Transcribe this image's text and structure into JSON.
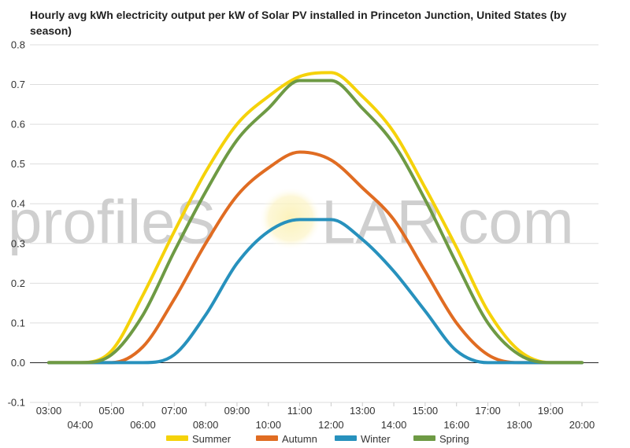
{
  "chart_data": {
    "type": "line",
    "title": "Hourly avg kWh electricity output per kW of Solar PV installed in Princeton Junction, United States (by season)",
    "xlabel": "",
    "ylabel": "",
    "ylim": [
      -0.1,
      0.8
    ],
    "yticks": [
      "-0.1",
      "0.0",
      "0.1",
      "0.2",
      "0.3",
      "0.4",
      "0.5",
      "0.6",
      "0.7",
      "0.8"
    ],
    "x": [
      "03:00",
      "04:00",
      "05:00",
      "06:00",
      "07:00",
      "08:00",
      "09:00",
      "10:00",
      "11:00",
      "12:00",
      "13:00",
      "14:00",
      "15:00",
      "16:00",
      "17:00",
      "18:00",
      "19:00",
      "20:00"
    ],
    "grid": true,
    "legend_position": "bottom",
    "series": [
      {
        "name": "Summer",
        "color": "#f5d20a",
        "values": [
          0.0,
          0.0,
          0.03,
          0.17,
          0.33,
          0.48,
          0.6,
          0.67,
          0.72,
          0.73,
          0.67,
          0.58,
          0.44,
          0.29,
          0.13,
          0.03,
          0.0,
          0.0
        ]
      },
      {
        "name": "Autumn",
        "color": "#e06c22",
        "values": [
          0.0,
          0.0,
          0.0,
          0.04,
          0.16,
          0.3,
          0.42,
          0.49,
          0.53,
          0.51,
          0.44,
          0.36,
          0.23,
          0.1,
          0.02,
          0.0,
          0.0,
          0.0
        ]
      },
      {
        "name": "Winter",
        "color": "#2791bd",
        "values": [
          0.0,
          0.0,
          0.0,
          0.0,
          0.02,
          0.12,
          0.25,
          0.33,
          0.36,
          0.36,
          0.31,
          0.23,
          0.13,
          0.03,
          0.0,
          0.0,
          0.0,
          0.0
        ]
      },
      {
        "name": "Spring",
        "color": "#6e9a44",
        "values": [
          0.0,
          0.0,
          0.02,
          0.12,
          0.28,
          0.43,
          0.56,
          0.64,
          0.71,
          0.71,
          0.64,
          0.55,
          0.41,
          0.25,
          0.1,
          0.02,
          0.0,
          0.0
        ]
      }
    ]
  },
  "watermark": {
    "left": "profileS",
    "right": "LAR.com"
  }
}
